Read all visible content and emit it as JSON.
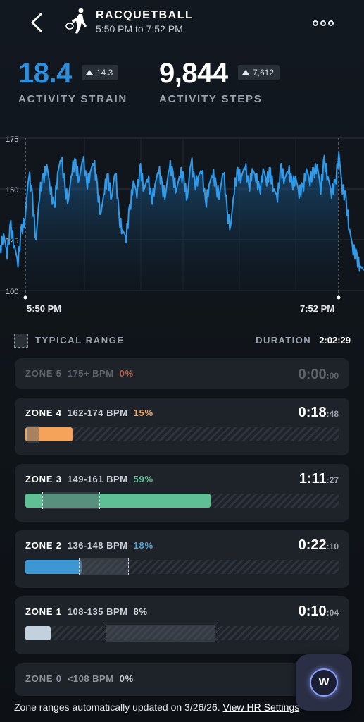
{
  "header": {
    "title": "RACQUETBALL",
    "subtitle": "5:50 PM to 7:52 PM"
  },
  "stats": {
    "strain": {
      "value": "18.4",
      "delta": "14.3",
      "label": "ACTIVITY STRAIN",
      "color": "#2b8fe0"
    },
    "steps": {
      "value": "9,844",
      "delta": "7,612",
      "label": "ACTIVITY STEPS"
    }
  },
  "chart_data": {
    "type": "line",
    "yticks": [
      100,
      125,
      150,
      175
    ],
    "ylim": [
      100,
      175
    ],
    "x_labels": [
      "5:50 PM",
      "7:52 PM"
    ],
    "series": [
      {
        "color": "#2f9bea",
        "values": [
          120,
          128,
          118,
          132,
          122,
          114,
          130,
          136,
          158,
          145,
          125,
          148,
          155,
          162,
          150,
          140,
          158,
          166,
          150,
          145,
          160,
          162,
          155,
          166,
          152,
          158,
          164,
          150,
          138,
          150,
          155,
          146,
          160,
          136,
          130,
          126,
          140,
          154,
          148,
          160,
          150,
          156,
          144,
          152,
          160,
          150,
          148,
          162,
          156,
          150,
          158,
          154,
          146,
          165,
          152,
          156,
          160,
          142,
          152,
          158,
          150,
          148,
          160,
          138,
          132,
          150,
          158,
          156,
          162,
          150,
          160,
          156,
          148,
          160,
          154,
          158,
          150,
          146,
          160,
          155,
          160,
          152,
          156,
          148,
          150,
          160,
          154,
          158,
          162,
          150,
          164,
          156,
          148,
          152,
          168,
          150,
          144,
          130,
          120,
          116,
          112,
          110
        ]
      }
    ]
  },
  "legend": {
    "typical_range": "TYPICAL RANGE",
    "duration_label": "DURATION",
    "duration_value": "2:02:29"
  },
  "zones": [
    {
      "name": "ZONE 5",
      "bpm": "175+ BPM",
      "pct": "0%",
      "pct_color": "#c25a3a",
      "time_main": "0:00",
      "time_sec": ":00",
      "fill": 0,
      "fill_color": "#c25a3a"
    },
    {
      "name": "ZONE 4",
      "bpm": "162-174 BPM",
      "pct": "15%",
      "pct_color": "#f5a25b",
      "time_main": "0:18",
      "time_sec": ":48",
      "fill": 0.15,
      "fill_color": "#f5a25b"
    },
    {
      "name": "ZONE 3",
      "bpm": "149-161 BPM",
      "pct": "59%",
      "pct_color": "#5ec094",
      "time_main": "1:11",
      "time_sec": ":27",
      "fill": 0.59,
      "fill_color": "#5ec094"
    },
    {
      "name": "ZONE 2",
      "bpm": "136-148 BPM",
      "pct": "18%",
      "pct_color": "#4aa3d8",
      "time_main": "0:22",
      "time_sec": ":10",
      "fill": 0.18,
      "fill_color": "#3d97d3"
    },
    {
      "name": "ZONE 1",
      "bpm": "108-135 BPM",
      "pct": "8%",
      "pct_color": "#d6dde6",
      "time_main": "0:10",
      "time_sec": ":04",
      "fill": 0.08,
      "fill_color": "#c3d1de"
    },
    {
      "name": "ZONE 0",
      "bpm": "<108 BPM",
      "pct": "0%",
      "pct_color": "#d6dde6"
    }
  ],
  "footer": {
    "text": "Zone ranges automatically updated on 3/26/26.",
    "link": "View HR Settings"
  },
  "fab": {
    "icon": "whoop-coach-icon",
    "glyph": "W"
  }
}
